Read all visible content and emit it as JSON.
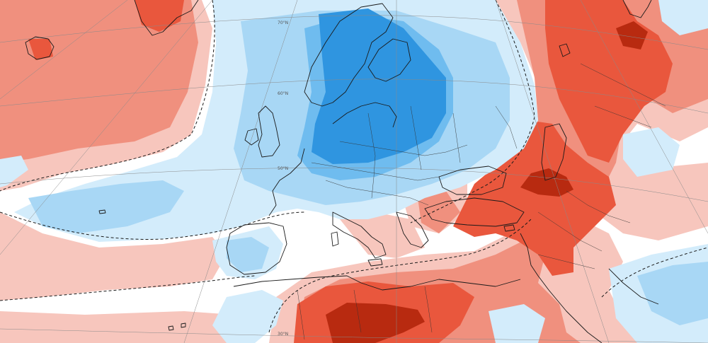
{
  "map": {
    "graticule_labels": [
      "70°N",
      "60°N",
      "50°N",
      "30°N"
    ],
    "colors": {
      "warm_1": "#f7c6bd",
      "warm_2": "#f0907e",
      "warm_3": "#e9573d",
      "warm_4": "#b82a10",
      "cool_1": "#d3ecfb",
      "cool_2": "#a8d7f5",
      "cool_3": "#6fbcef",
      "cool_4": "#2f95e0",
      "neutral": "#ffffff",
      "coastline": "#1a1a1a",
      "graticule": "#8a8a8a"
    }
  }
}
